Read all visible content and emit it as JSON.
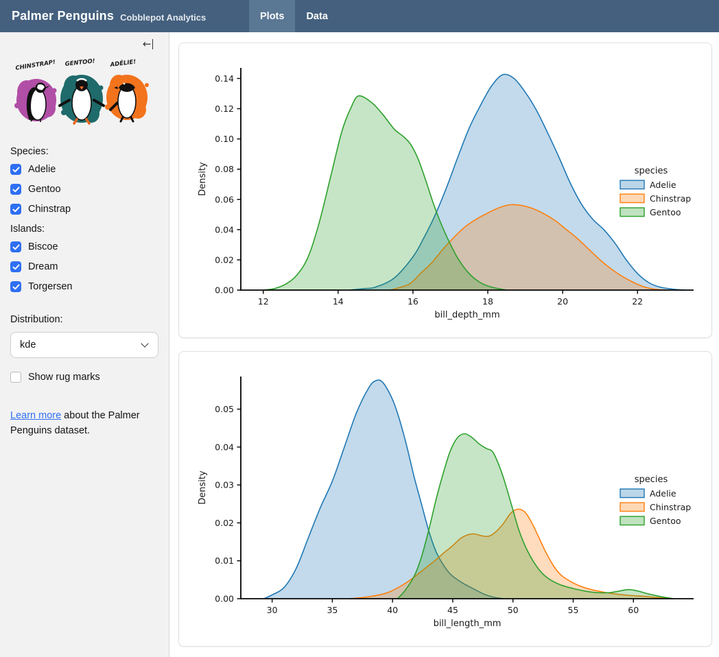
{
  "navbar": {
    "title": "Palmer Penguins",
    "subtitle": "Cobblepot Analytics",
    "tabs": [
      {
        "label": "Plots",
        "active": true
      },
      {
        "label": "Data",
        "active": false
      }
    ]
  },
  "colors": {
    "navbar_bg": "#44607e",
    "navbar_active_tab": "#5a7794",
    "sidebar_bg": "#f2f2f2",
    "accent_checkbox": "#2e6ff2",
    "link": "#2e6ff2",
    "adelie": "#1f77b4",
    "chinstrap": "#ff7f0e",
    "gentoo": "#2ca02c",
    "splash_magenta": "#b14ea6",
    "splash_teal": "#1f6a6b",
    "splash_orange": "#f3731d"
  },
  "sidebar": {
    "collapse_icon": "←",
    "artwork": {
      "labels": [
        "CHINSTRAP!",
        "GENTOO!",
        "ADÉLIE!"
      ]
    },
    "species": {
      "label": "Species:",
      "options": [
        {
          "label": "Adelie",
          "checked": true
        },
        {
          "label": "Gentoo",
          "checked": true
        },
        {
          "label": "Chinstrap",
          "checked": true
        }
      ]
    },
    "islands": {
      "label": "Islands:",
      "options": [
        {
          "label": "Biscoe",
          "checked": true
        },
        {
          "label": "Dream",
          "checked": true
        },
        {
          "label": "Torgersen",
          "checked": true
        }
      ]
    },
    "distribution": {
      "label": "Distribution:",
      "value": "kde"
    },
    "rug": {
      "label": "Show rug marks",
      "checked": false
    },
    "footer": {
      "link": "Learn more",
      "text_after": " about the Palmer Penguins dataset."
    }
  },
  "chart_data": [
    {
      "type": "area",
      "subtype": "kde-density",
      "xlabel": "bill_depth_mm",
      "ylabel": "Density",
      "xlim": [
        11.4,
        23.5
      ],
      "ylim": [
        0,
        0.147
      ],
      "xticks": [
        12,
        14,
        16,
        18,
        20,
        22
      ],
      "xtick_labels": [
        "12",
        "14",
        "16",
        "18",
        "20",
        "22"
      ],
      "yticks": [
        0,
        0.02,
        0.04,
        0.06,
        0.08,
        0.1,
        0.12,
        0.14
      ],
      "ytick_labels": [
        "0.00",
        "0.02",
        "0.04",
        "0.06",
        "0.08",
        "0.10",
        "0.12",
        "0.14"
      ],
      "grid": false,
      "legend": {
        "title": "species",
        "position": "right"
      },
      "series": [
        {
          "name": "Adelie",
          "color": "#1f77b4",
          "points": [
            [
              14.3,
              0
            ],
            [
              14.7,
              0.001
            ],
            [
              15.0,
              0.002
            ],
            [
              15.5,
              0.008
            ],
            [
              16.0,
              0.022
            ],
            [
              16.3,
              0.035
            ],
            [
              16.6,
              0.05
            ],
            [
              16.9,
              0.068
            ],
            [
              17.2,
              0.088
            ],
            [
              17.5,
              0.107
            ],
            [
              17.8,
              0.122
            ],
            [
              18.1,
              0.135
            ],
            [
              18.4,
              0.1425
            ],
            [
              18.7,
              0.14
            ],
            [
              19.0,
              0.131
            ],
            [
              19.3,
              0.119
            ],
            [
              19.6,
              0.104
            ],
            [
              19.9,
              0.088
            ],
            [
              20.2,
              0.071
            ],
            [
              20.5,
              0.057
            ],
            [
              20.8,
              0.047
            ],
            [
              21.1,
              0.04
            ],
            [
              21.4,
              0.031
            ],
            [
              21.7,
              0.02
            ],
            [
              22.0,
              0.011
            ],
            [
              22.3,
              0.005
            ],
            [
              22.6,
              0.002
            ],
            [
              23.0,
              0.0005
            ],
            [
              23.3,
              0
            ]
          ]
        },
        {
          "name": "Chinstrap",
          "color": "#ff7f0e",
          "points": [
            [
              15.4,
              0
            ],
            [
              15.9,
              0.004
            ],
            [
              16.2,
              0.011
            ],
            [
              16.5,
              0.018
            ],
            [
              16.8,
              0.027
            ],
            [
              17.1,
              0.035
            ],
            [
              17.4,
              0.042
            ],
            [
              17.7,
              0.047
            ],
            [
              18.0,
              0.051
            ],
            [
              18.3,
              0.0545
            ],
            [
              18.6,
              0.0565
            ],
            [
              18.9,
              0.056
            ],
            [
              19.2,
              0.054
            ],
            [
              19.5,
              0.0505
            ],
            [
              19.8,
              0.046
            ],
            [
              20.1,
              0.04
            ],
            [
              20.4,
              0.034
            ],
            [
              20.7,
              0.027
            ],
            [
              21.0,
              0.02
            ],
            [
              21.3,
              0.014
            ],
            [
              21.6,
              0.009
            ],
            [
              21.9,
              0.005
            ],
            [
              22.2,
              0.002
            ],
            [
              22.5,
              0.0005
            ],
            [
              22.8,
              0
            ]
          ]
        },
        {
          "name": "Gentoo",
          "color": "#2ca02c",
          "points": [
            [
              12.0,
              0
            ],
            [
              12.3,
              0.001
            ],
            [
              12.6,
              0.004
            ],
            [
              12.9,
              0.01
            ],
            [
              13.2,
              0.022
            ],
            [
              13.5,
              0.045
            ],
            [
              13.8,
              0.075
            ],
            [
              14.1,
              0.105
            ],
            [
              14.35,
              0.121
            ],
            [
              14.55,
              0.1285
            ],
            [
              14.9,
              0.124
            ],
            [
              15.2,
              0.116
            ],
            [
              15.5,
              0.1065
            ],
            [
              15.75,
              0.1015
            ],
            [
              15.95,
              0.096
            ],
            [
              16.15,
              0.086
            ],
            [
              16.35,
              0.072
            ],
            [
              16.55,
              0.057
            ],
            [
              16.75,
              0.044
            ],
            [
              16.95,
              0.033
            ],
            [
              17.2,
              0.021
            ],
            [
              17.5,
              0.011
            ],
            [
              17.8,
              0.005
            ],
            [
              18.1,
              0.002
            ],
            [
              18.5,
              0
            ]
          ]
        }
      ]
    },
    {
      "type": "area",
      "subtype": "kde-density",
      "xlabel": "bill_length_mm",
      "ylabel": "Density",
      "xlim": [
        27.4,
        65.0
      ],
      "ylim": [
        0,
        0.0586
      ],
      "xticks": [
        30,
        35,
        40,
        45,
        50,
        55,
        60
      ],
      "xtick_labels": [
        "30",
        "35",
        "40",
        "45",
        "50",
        "55",
        "60"
      ],
      "yticks": [
        0,
        0.01,
        0.02,
        0.03,
        0.04,
        0.05
      ],
      "ytick_labels": [
        "0.00",
        "0.01",
        "0.02",
        "0.03",
        "0.04",
        "0.05"
      ],
      "grid": false,
      "legend": {
        "title": "species",
        "position": "right"
      },
      "series": [
        {
          "name": "Adelie",
          "color": "#1f77b4",
          "points": [
            [
              29.3,
              0
            ],
            [
              30,
              0.001
            ],
            [
              31,
              0.003
            ],
            [
              32,
              0.008
            ],
            [
              33,
              0.016
            ],
            [
              34,
              0.024
            ],
            [
              35,
              0.031
            ],
            [
              36,
              0.04
            ],
            [
              37,
              0.049
            ],
            [
              38,
              0.0555
            ],
            [
              38.6,
              0.0575
            ],
            [
              39.2,
              0.057
            ],
            [
              40,
              0.0525
            ],
            [
              40.6,
              0.047
            ],
            [
              41.2,
              0.04
            ],
            [
              41.8,
              0.032
            ],
            [
              42.4,
              0.025
            ],
            [
              43,
              0.018
            ],
            [
              43.6,
              0.0125
            ],
            [
              44.2,
              0.009
            ],
            [
              44.8,
              0.0065
            ],
            [
              45.4,
              0.005
            ],
            [
              46,
              0.0038
            ],
            [
              46.8,
              0.0025
            ],
            [
              47.6,
              0.0012
            ],
            [
              48.4,
              0.0004
            ],
            [
              49.2,
              0
            ]
          ]
        },
        {
          "name": "Chinstrap",
          "color": "#ff7f0e",
          "points": [
            [
              36.5,
              0
            ],
            [
              38,
              0.0005
            ],
            [
              39.5,
              0.0015
            ],
            [
              40.5,
              0.003
            ],
            [
              41.5,
              0.005
            ],
            [
              42.5,
              0.0075
            ],
            [
              43.5,
              0.01
            ],
            [
              44.3,
              0.0122
            ],
            [
              45,
              0.014
            ],
            [
              45.6,
              0.0158
            ],
            [
              46.2,
              0.0168
            ],
            [
              46.8,
              0.0171
            ],
            [
              47.4,
              0.0166
            ],
            [
              48,
              0.0165
            ],
            [
              48.6,
              0.0177
            ],
            [
              49.2,
              0.0198
            ],
            [
              49.8,
              0.0225
            ],
            [
              50.4,
              0.0236
            ],
            [
              51,
              0.0228
            ],
            [
              51.6,
              0.0198
            ],
            [
              52.2,
              0.0158
            ],
            [
              52.8,
              0.0118
            ],
            [
              53.4,
              0.0085
            ],
            [
              54,
              0.0062
            ],
            [
              54.8,
              0.0045
            ],
            [
              55.6,
              0.0033
            ],
            [
              56.4,
              0.0025
            ],
            [
              57.4,
              0.0018
            ],
            [
              58.4,
              0.0013
            ],
            [
              59.6,
              0.0009
            ],
            [
              61,
              0.0006
            ],
            [
              62,
              0.0003
            ],
            [
              63.3,
              0
            ]
          ]
        },
        {
          "name": "Gentoo",
          "color": "#2ca02c",
          "points": [
            [
              40.4,
              0
            ],
            [
              41,
              0.002
            ],
            [
              41.8,
              0.006
            ],
            [
              42.4,
              0.011
            ],
            [
              43,
              0.018
            ],
            [
              43.6,
              0.026
            ],
            [
              44.2,
              0.033
            ],
            [
              44.8,
              0.039
            ],
            [
              45.4,
              0.0425
            ],
            [
              46,
              0.0435
            ],
            [
              46.6,
              0.0425
            ],
            [
              47.2,
              0.0408
            ],
            [
              47.8,
              0.0396
            ],
            [
              48.3,
              0.0388
            ],
            [
              48.8,
              0.0355
            ],
            [
              49.3,
              0.031
            ],
            [
              49.9,
              0.0245
            ],
            [
              50.5,
              0.018
            ],
            [
              51.1,
              0.0133
            ],
            [
              51.7,
              0.0098
            ],
            [
              52.4,
              0.0068
            ],
            [
              53.1,
              0.005
            ],
            [
              54,
              0.0036
            ],
            [
              55,
              0.0027
            ],
            [
              56,
              0.002
            ],
            [
              57,
              0.0016
            ],
            [
              58,
              0.0016
            ],
            [
              58.8,
              0.002
            ],
            [
              59.6,
              0.0024
            ],
            [
              60.4,
              0.002
            ],
            [
              61.2,
              0.0013
            ],
            [
              62.2,
              0.0006
            ],
            [
              63.3,
              0
            ]
          ]
        }
      ]
    }
  ]
}
